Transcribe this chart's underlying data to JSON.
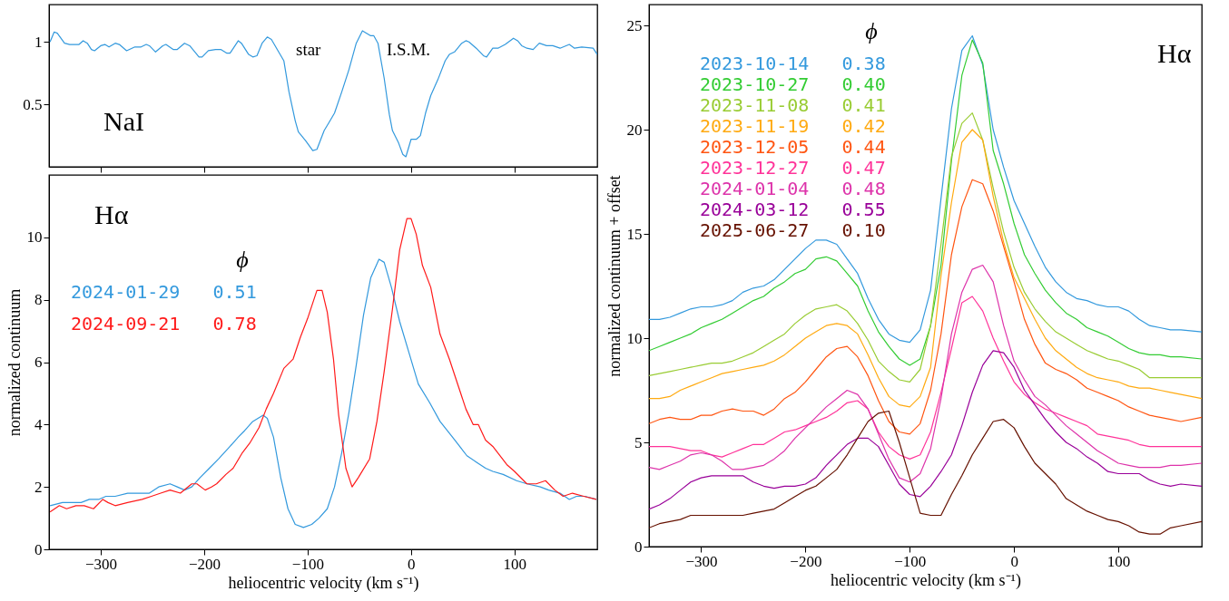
{
  "chart_data": [
    {
      "type": "line",
      "xlim": [
        -350,
        180
      ],
      "ylim": [
        0,
        1.3
      ],
      "xticks": [
        -300,
        -200,
        -100,
        0,
        100
      ],
      "yticks": [
        0.5,
        1
      ],
      "tick_labels": "y",
      "annotations": [
        "NaI",
        "star",
        "I.S.M."
      ],
      "series": [
        {
          "color": "#3399dd",
          "x": [
            -349,
            -345,
            -342,
            -335,
            -330,
            -321,
            -317,
            -313,
            -309,
            -306,
            -300,
            -296,
            -292,
            -286,
            -282,
            -275,
            -267,
            -261,
            -256,
            -253,
            -247,
            -240,
            -237,
            -230,
            -226,
            -219,
            -214,
            -205,
            -202,
            -196,
            -189,
            -184,
            -178,
            -175,
            -167,
            -164,
            -157,
            -153,
            -149,
            -144,
            -139,
            -135,
            -128,
            -123,
            -118,
            -112,
            -109,
            -102,
            -95,
            -91,
            -84,
            -79,
            -74,
            -67,
            -60,
            -53,
            -47,
            -43,
            -39,
            -36,
            -32,
            -26,
            -21,
            -18,
            -12,
            -8,
            -5,
            0,
            5,
            9,
            14,
            19,
            26,
            33,
            37,
            42,
            49,
            53,
            56,
            63,
            70,
            73,
            79,
            84,
            91,
            99,
            103,
            107,
            112,
            118,
            124,
            131,
            137,
            144,
            153,
            158,
            165,
            176,
            180
          ],
          "values": [
            1.0,
            1.08,
            1.07,
            0.99,
            0.98,
            0.98,
            1.01,
            0.99,
            0.94,
            0.93,
            0.97,
            0.98,
            0.96,
            0.99,
            0.98,
            0.93,
            0.96,
            0.96,
            0.98,
            0.97,
            0.92,
            0.97,
            0.98,
            0.94,
            0.94,
            0.99,
            0.97,
            0.88,
            0.88,
            0.93,
            0.94,
            0.94,
            0.91,
            0.91,
            1.01,
            0.99,
            0.9,
            0.88,
            0.89,
            0.99,
            1.04,
            1.02,
            0.92,
            0.85,
            0.6,
            0.37,
            0.28,
            0.21,
            0.13,
            0.14,
            0.29,
            0.36,
            0.43,
            0.6,
            0.78,
            0.99,
            1.09,
            1.07,
            1.05,
            1.05,
            0.99,
            0.71,
            0.42,
            0.29,
            0.19,
            0.1,
            0.08,
            0.22,
            0.22,
            0.25,
            0.43,
            0.57,
            0.7,
            0.85,
            0.9,
            0.92,
            0.99,
            1.01,
            1.0,
            0.95,
            0.89,
            0.88,
            0.95,
            0.95,
            0.98,
            1.03,
            1.01,
            0.97,
            0.95,
            0.94,
            0.99,
            0.97,
            0.97,
            0.95,
            0.98,
            0.95,
            0.96,
            0.95,
            0.9
          ]
        }
      ]
    },
    {
      "type": "line",
      "xlabel": "heliocentric velocity (km s⁻¹)",
      "ylabel": "normalized continuum",
      "xlim": [
        -350,
        180
      ],
      "ylim": [
        0,
        12
      ],
      "xticks": [
        -300,
        -200,
        -100,
        0,
        100
      ],
      "yticks": [
        0,
        2,
        4,
        6,
        8,
        10
      ],
      "annotations": [
        "Hα"
      ],
      "legend": "top left",
      "legend_title": "ϕ",
      "series": [
        {
          "name": "2024-01-29   0.51",
          "color": "#3399dd",
          "x": [
            -349,
            -337,
            -326,
            -319,
            -311,
            -302,
            -295,
            -286,
            -274,
            -263,
            -253,
            -244,
            -233,
            -226,
            -219,
            -212,
            -204,
            -195,
            -186,
            -175,
            -167,
            -161,
            -153,
            -143,
            -139,
            -133,
            -126,
            -119,
            -112,
            -104,
            -96,
            -89,
            -81,
            -74,
            -67,
            -60,
            -53,
            -46,
            -39,
            -31,
            -26,
            -19,
            -11,
            -2,
            7,
            18,
            28,
            40,
            54,
            63,
            72,
            79,
            89,
            102,
            112,
            125,
            133,
            144,
            153,
            160,
            168,
            179
          ],
          "values": [
            1.4,
            1.5,
            1.5,
            1.5,
            1.6,
            1.6,
            1.7,
            1.7,
            1.8,
            1.8,
            1.8,
            2.0,
            2.1,
            2.0,
            1.9,
            2.0,
            2.3,
            2.6,
            2.9,
            3.3,
            3.6,
            3.8,
            4.1,
            4.3,
            4.2,
            3.6,
            2.3,
            1.3,
            0.8,
            0.7,
            0.8,
            1.0,
            1.3,
            2.0,
            3.1,
            4.4,
            5.9,
            7.5,
            8.7,
            9.3,
            9.2,
            8.4,
            7.3,
            6.3,
            5.3,
            4.7,
            4.1,
            3.6,
            3.0,
            2.8,
            2.6,
            2.5,
            2.4,
            2.2,
            2.1,
            2.0,
            1.9,
            1.8,
            1.6,
            1.7,
            1.7,
            1.6
          ]
        },
        {
          "name": "2024-09-21   0.78",
          "color": "#ff1a1a",
          "x": [
            -349,
            -340,
            -333,
            -324,
            -316,
            -307,
            -298,
            -293,
            -286,
            -274,
            -260,
            -251,
            -242,
            -233,
            -223,
            -212,
            -207,
            -199,
            -193,
            -188,
            -179,
            -172,
            -163,
            -156,
            -147,
            -140,
            -133,
            -123,
            -114,
            -107,
            -100,
            -95,
            -91,
            -86,
            -81,
            -75,
            -70,
            -63,
            -57,
            -51,
            -40,
            -33,
            -26,
            -18,
            -11,
            -4,
            0,
            5,
            11,
            19,
            28,
            37,
            46,
            53,
            60,
            65,
            72,
            79,
            93,
            100,
            112,
            121,
            130,
            139,
            147,
            156,
            167,
            179
          ],
          "values": [
            1.2,
            1.4,
            1.3,
            1.4,
            1.4,
            1.3,
            1.6,
            1.5,
            1.4,
            1.5,
            1.6,
            1.7,
            1.8,
            1.9,
            1.8,
            2.1,
            2.1,
            1.9,
            2.0,
            2.1,
            2.4,
            2.6,
            3.1,
            3.4,
            3.9,
            4.5,
            5.0,
            5.8,
            6.1,
            6.8,
            7.4,
            7.9,
            8.3,
            8.3,
            7.6,
            6.1,
            4.3,
            2.6,
            2.0,
            2.3,
            2.9,
            4.1,
            5.7,
            7.7,
            9.6,
            10.6,
            10.6,
            10.1,
            9.1,
            8.4,
            6.9,
            6.1,
            5.2,
            4.5,
            4.0,
            4.0,
            3.5,
            3.3,
            2.7,
            2.5,
            2.1,
            2.1,
            2.2,
            1.9,
            1.7,
            1.8,
            1.7,
            1.6
          ]
        }
      ]
    },
    {
      "type": "line",
      "xlabel": "heliocentric velocity (km s⁻¹)",
      "ylabel": "normalized continuum + offset",
      "xlim": [
        -350,
        180
      ],
      "ylim": [
        0,
        26
      ],
      "xticks": [
        -300,
        -200,
        -100,
        0,
        100
      ],
      "yticks": [
        0,
        5,
        10,
        15,
        20,
        25
      ],
      "annotations": [
        "Hα"
      ],
      "legend": "top left",
      "legend_title": "ϕ",
      "x": [
        -350,
        -340,
        -330,
        -320,
        -310,
        -300,
        -290,
        -280,
        -270,
        -260,
        -250,
        -240,
        -230,
        -220,
        -210,
        -200,
        -190,
        -180,
        -170,
        -160,
        -150,
        -140,
        -130,
        -120,
        -110,
        -100,
        -90,
        -80,
        -70,
        -60,
        -50,
        -40,
        -30,
        -20,
        -10,
        0,
        10,
        20,
        30,
        40,
        50,
        60,
        70,
        80,
        90,
        100,
        110,
        120,
        130,
        140,
        150,
        160,
        180
      ],
      "series": [
        {
          "name": "2023-10-14   0.38",
          "color": "#3399dd",
          "values": [
            10.9,
            10.9,
            11.0,
            11.2,
            11.4,
            11.5,
            11.5,
            11.6,
            11.8,
            12.2,
            12.4,
            12.5,
            12.8,
            13.3,
            13.8,
            14.3,
            14.7,
            14.7,
            14.5,
            13.8,
            13.1,
            11.9,
            10.9,
            10.2,
            9.9,
            9.8,
            10.4,
            12.3,
            16.7,
            21.0,
            23.8,
            24.5,
            23.1,
            20.0,
            18.2,
            16.6,
            15.5,
            14.4,
            13.4,
            12.7,
            12.2,
            11.9,
            11.8,
            11.6,
            11.5,
            11.5,
            11.3,
            10.9,
            10.6,
            10.5,
            10.4,
            10.4,
            10.3
          ]
        },
        {
          "name": "2023-10-27   0.40",
          "color": "#33cc33",
          "values": [
            9.4,
            9.6,
            9.8,
            10.0,
            10.2,
            10.5,
            10.7,
            10.9,
            11.2,
            11.5,
            11.8,
            12.0,
            12.4,
            12.7,
            13.1,
            13.3,
            13.8,
            13.9,
            13.7,
            13.1,
            12.5,
            11.3,
            10.3,
            9.6,
            9.0,
            8.7,
            9.0,
            10.6,
            13.5,
            18.5,
            22.6,
            24.3,
            23.2,
            19.0,
            17.4,
            15.5,
            14.0,
            13.1,
            12.3,
            11.7,
            11.2,
            10.9,
            10.5,
            10.3,
            10.1,
            9.8,
            9.5,
            9.3,
            9.2,
            9.2,
            9.1,
            9.1,
            9.0
          ]
        },
        {
          "name": "2023-11-08   0.41",
          "color": "#99cc33",
          "values": [
            8.2,
            8.3,
            8.4,
            8.5,
            8.6,
            8.7,
            8.8,
            8.8,
            8.9,
            9.1,
            9.3,
            9.6,
            9.9,
            10.2,
            10.7,
            11.1,
            11.4,
            11.5,
            11.6,
            11.3,
            10.7,
            9.9,
            8.9,
            8.4,
            8.0,
            7.9,
            8.5,
            10.6,
            14.5,
            18.7,
            20.3,
            20.8,
            19.5,
            17.2,
            15.1,
            13.4,
            12.2,
            11.4,
            10.8,
            10.3,
            10.0,
            9.7,
            9.4,
            9.2,
            9.0,
            8.9,
            8.7,
            8.5,
            8.1,
            8.1,
            8.1,
            8.1,
            8.1
          ]
        },
        {
          "name": "2023-11-19   0.42",
          "color": "#ffaa11",
          "values": [
            7.1,
            7.1,
            7.2,
            7.5,
            7.7,
            7.9,
            8.1,
            8.3,
            8.4,
            8.5,
            8.6,
            8.7,
            8.9,
            9.2,
            9.6,
            10.0,
            10.3,
            10.6,
            10.7,
            10.6,
            10.2,
            9.2,
            8.1,
            7.2,
            6.8,
            6.7,
            7.2,
            8.6,
            13.0,
            16.5,
            19.4,
            20.0,
            19.5,
            16.8,
            14.6,
            12.9,
            11.9,
            10.9,
            10.0,
            9.4,
            9.0,
            8.6,
            8.3,
            8.1,
            8.0,
            7.9,
            7.7,
            7.6,
            7.6,
            7.5,
            7.4,
            7.3,
            7.1
          ]
        },
        {
          "name": "2023-12-05   0.44",
          "color": "#ff5511",
          "values": [
            5.9,
            6.1,
            6.2,
            6.1,
            6.1,
            6.3,
            6.3,
            6.5,
            6.6,
            6.5,
            6.5,
            6.3,
            6.6,
            7.1,
            7.4,
            7.9,
            8.5,
            9.1,
            9.5,
            9.6,
            9.1,
            8.2,
            7.0,
            6.0,
            5.5,
            5.4,
            5.9,
            7.5,
            10.2,
            14.0,
            16.3,
            17.6,
            17.4,
            16.1,
            14.4,
            12.7,
            10.9,
            9.7,
            8.8,
            8.5,
            8.3,
            8.0,
            7.6,
            7.4,
            7.2,
            7.0,
            6.7,
            6.5,
            6.3,
            6.2,
            6.1,
            6.0,
            6.2
          ]
        },
        {
          "name": "2023-12-27   0.47",
          "color": "#ff3399",
          "values": [
            4.8,
            4.8,
            4.8,
            4.7,
            4.6,
            4.6,
            4.4,
            4.3,
            4.5,
            4.7,
            4.9,
            4.9,
            5.2,
            5.5,
            5.6,
            5.8,
            6.0,
            6.2,
            6.5,
            6.9,
            7.0,
            6.6,
            5.5,
            4.8,
            4.4,
            4.2,
            4.4,
            5.5,
            7.4,
            9.5,
            11.7,
            12.0,
            11.3,
            10.0,
            8.9,
            7.9,
            7.3,
            6.9,
            6.6,
            6.4,
            6.2,
            6.0,
            5.8,
            5.4,
            5.3,
            5.2,
            5.1,
            4.9,
            4.8,
            4.8,
            4.8,
            4.8,
            4.8
          ]
        },
        {
          "name": "2024-01-04   0.48",
          "color": "#dd33aa",
          "values": [
            3.8,
            3.7,
            3.9,
            4.1,
            4.4,
            4.5,
            4.4,
            4.1,
            3.7,
            3.7,
            3.8,
            3.9,
            4.2,
            4.6,
            5.2,
            5.7,
            6.2,
            6.7,
            7.1,
            7.5,
            7.3,
            6.6,
            5.4,
            4.2,
            3.3,
            3.1,
            3.5,
            4.7,
            7.1,
            10.2,
            12.2,
            13.3,
            13.5,
            12.7,
            10.6,
            8.9,
            8.0,
            7.2,
            6.8,
            6.3,
            5.8,
            5.4,
            5.0,
            4.6,
            4.3,
            4.0,
            3.9,
            3.8,
            3.8,
            3.8,
            3.9,
            3.9,
            4.0
          ]
        },
        {
          "name": "2024-03-12   0.55",
          "color": "#990099",
          "values": [
            1.8,
            2.0,
            2.3,
            2.7,
            3.1,
            3.3,
            3.4,
            3.4,
            3.4,
            3.4,
            3.1,
            2.9,
            2.8,
            2.9,
            2.9,
            3.0,
            3.3,
            3.9,
            4.4,
            4.9,
            5.2,
            5.2,
            4.8,
            3.9,
            3.0,
            2.5,
            2.4,
            2.9,
            3.6,
            4.4,
            5.8,
            7.4,
            8.7,
            9.4,
            9.3,
            8.6,
            7.5,
            6.8,
            6.1,
            5.5,
            5.0,
            4.7,
            4.3,
            4.0,
            3.6,
            3.5,
            3.5,
            3.5,
            3.2,
            3.0,
            2.9,
            3.0,
            2.9
          ]
        },
        {
          "name": "2025-06-27   0.10",
          "color": "#661100",
          "values": [
            0.9,
            1.1,
            1.2,
            1.3,
            1.5,
            1.5,
            1.5,
            1.5,
            1.5,
            1.5,
            1.6,
            1.7,
            1.8,
            2.1,
            2.4,
            2.7,
            2.9,
            3.3,
            3.7,
            4.4,
            5.2,
            6.0,
            6.4,
            6.5,
            5.0,
            3.3,
            1.6,
            1.5,
            1.5,
            2.5,
            3.4,
            4.4,
            5.2,
            6.0,
            6.1,
            5.7,
            4.8,
            4.0,
            3.5,
            3.0,
            2.3,
            2.0,
            1.7,
            1.5,
            1.3,
            1.2,
            1.0,
            0.7,
            0.6,
            0.6,
            0.9,
            1.0,
            1.2
          ]
        }
      ]
    }
  ]
}
